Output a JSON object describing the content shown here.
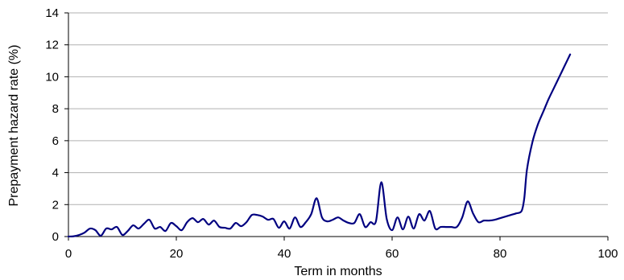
{
  "chart_data": {
    "type": "line",
    "xlabel": "Term in months",
    "ylabel": "Prepayment hazard rate (%)",
    "xlim": [
      0,
      100
    ],
    "ylim": [
      0,
      14
    ],
    "x_ticks": [
      "0",
      "20",
      "40",
      "60",
      "80",
      "100"
    ],
    "y_ticks": [
      "0",
      "2",
      "4",
      "6",
      "8",
      "10",
      "12",
      "14"
    ],
    "grid": "horizontal",
    "legend": "none",
    "line_color": "#000080",
    "series": [
      {
        "x": [
          0,
          1,
          2,
          3,
          4,
          5,
          6,
          7,
          8,
          9,
          10,
          11,
          12,
          13,
          14,
          15,
          16,
          17,
          18,
          19,
          20,
          21,
          22,
          23,
          24,
          25,
          26,
          27,
          28,
          29,
          30,
          31,
          32,
          33,
          34,
          35,
          36,
          37,
          38,
          39,
          40,
          41,
          42,
          43,
          44,
          45,
          46,
          47,
          48,
          49,
          50,
          51,
          52,
          53,
          54,
          55,
          56,
          57,
          58,
          59,
          60,
          61,
          62,
          63,
          64,
          65,
          66,
          67,
          68,
          69,
          70,
          71,
          72,
          73,
          74,
          75,
          76,
          77,
          78,
          79,
          80,
          81,
          82,
          83,
          84,
          84.5,
          85,
          86,
          87,
          88,
          89,
          90,
          91,
          92,
          93
        ],
        "y": [
          0,
          0.02,
          0.1,
          0.25,
          0.5,
          0.4,
          0.05,
          0.5,
          0.45,
          0.6,
          0.1,
          0.35,
          0.7,
          0.5,
          0.8,
          1.05,
          0.5,
          0.6,
          0.35,
          0.85,
          0.65,
          0.4,
          0.9,
          1.15,
          0.9,
          1.1,
          0.75,
          1.0,
          0.6,
          0.55,
          0.5,
          0.85,
          0.65,
          0.9,
          1.35,
          1.35,
          1.25,
          1.05,
          1.1,
          0.55,
          0.95,
          0.5,
          1.2,
          0.6,
          0.9,
          1.4,
          2.4,
          1.2,
          0.95,
          1.05,
          1.2,
          1.0,
          0.85,
          0.85,
          1.4,
          0.6,
          0.9,
          0.95,
          3.4,
          1.1,
          0.4,
          1.2,
          0.45,
          1.25,
          0.5,
          1.4,
          1.0,
          1.6,
          0.5,
          0.6,
          0.6,
          0.6,
          0.6,
          1.2,
          2.2,
          1.45,
          0.9,
          1.0,
          1.0,
          1.05,
          1.15,
          1.25,
          1.35,
          1.45,
          1.6,
          2.4,
          4.2,
          5.9,
          7.0,
          7.8,
          8.6,
          9.3,
          10.0,
          10.7,
          11.4
        ]
      }
    ]
  }
}
